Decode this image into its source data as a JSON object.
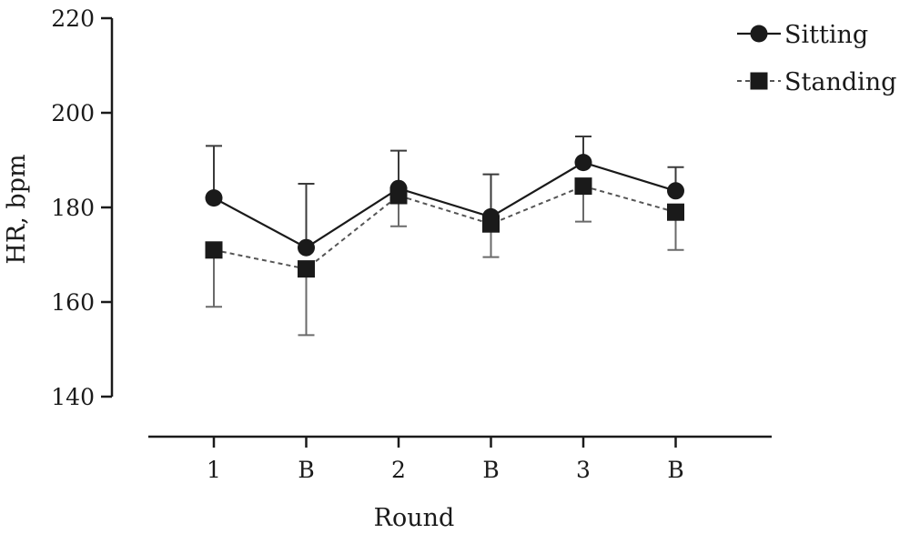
{
  "chart_data": {
    "type": "line",
    "title": "",
    "xlabel": "Round",
    "ylabel": "HR, bpm",
    "categories": [
      "1",
      "B",
      "2",
      "B",
      "3",
      "B"
    ],
    "ylim": [
      140,
      220
    ],
    "yticks": [
      "140",
      "160",
      "180",
      "200",
      "220"
    ],
    "grid": false,
    "legend_position": "top-right",
    "series": [
      {
        "name": "Sitting",
        "marker": "circle",
        "line_style": "solid",
        "color": "#1a1a1a",
        "values": [
          182,
          171.5,
          184,
          178,
          189.5,
          183.5
        ],
        "error_bars": [
          [
            182,
            193
          ],
          [
            171.5,
            185
          ],
          [
            184,
            192
          ],
          [
            178,
            187
          ],
          [
            189.5,
            195
          ],
          [
            183.5,
            188.5
          ]
        ]
      },
      {
        "name": "Standing",
        "marker": "square",
        "line_style": "dashed",
        "color": "#1a1a1a",
        "values": [
          171,
          167,
          182.5,
          176.5,
          184.5,
          179
        ],
        "error_bars": [
          [
            159,
            171
          ],
          [
            153,
            167
          ],
          [
            176,
            182.5
          ],
          [
            169.5,
            176.5
          ],
          [
            177,
            184.5
          ],
          [
            171,
            179
          ]
        ]
      }
    ]
  }
}
